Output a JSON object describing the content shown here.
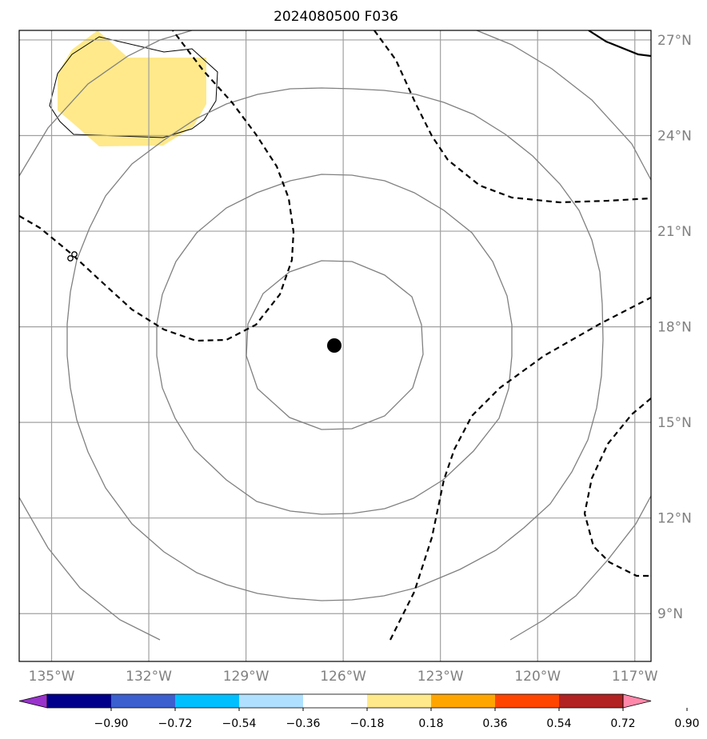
{
  "title": "2024080500 F036",
  "map": {
    "lon_range": [
      -136,
      -116.5
    ],
    "lat_range": [
      7.5,
      27.3
    ],
    "lon_ticks": [
      -135,
      -132,
      -129,
      -126,
      -123,
      -120,
      -117
    ],
    "lon_tick_labels": [
      "135°W",
      "132°W",
      "129°W",
      "126°W",
      "123°W",
      "120°W",
      "117°W"
    ],
    "lat_ticks": [
      9,
      12,
      15,
      18,
      21,
      24,
      27
    ],
    "lat_tick_labels": [
      "9°N",
      "12°N",
      "15°N",
      "18°N",
      "21°N",
      "24°N",
      "27°N"
    ],
    "grid": true,
    "center_marker": {
      "lon": -125.6,
      "lat": 17.3,
      "color": "#000000"
    },
    "range_rings_color": "#808080",
    "filled_region_color": "#ffe98a"
  },
  "colorbar": {
    "colors": [
      "#9933cc",
      "#00008b",
      "#3b5fcf",
      "#00bfff",
      "#b0e0ff",
      "#ffffff",
      "#ffe98a",
      "#ffa500",
      "#ff4500",
      "#b22222",
      "#ff88aa"
    ],
    "tick_labels": [
      "−0.90",
      "−0.72",
      "−0.54",
      "−0.36",
      "−0.18",
      "0.18",
      "0.36",
      "0.54",
      "0.72",
      "0.90"
    ]
  }
}
